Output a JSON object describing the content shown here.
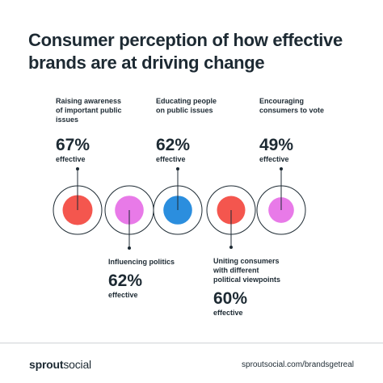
{
  "title_lines": [
    "Consumer perception of how effective",
    "brands are at driving change"
  ],
  "chart_data": {
    "type": "bubble",
    "title": "Consumer perception of how effective brands are at driving change",
    "unit": "% effective",
    "items": [
      {
        "label_lines": [
          "Raising awareness",
          "of important public",
          "issues"
        ],
        "value": 67,
        "value_text": "67%",
        "sub": "effective",
        "color": "#f4564e",
        "label_side": "top"
      },
      {
        "label_lines": [
          "Influencing politics"
        ],
        "value": 62,
        "value_text": "62%",
        "sub": "effective",
        "color": "#e87ae8",
        "label_side": "bottom"
      },
      {
        "label_lines": [
          "Educating people",
          "on public issues"
        ],
        "value": 62,
        "value_text": "62%",
        "sub": "effective",
        "color": "#2b8ede",
        "label_side": "top"
      },
      {
        "label_lines": [
          "Uniting consumers",
          "with different",
          "political viewpoints"
        ],
        "value": 60,
        "value_text": "60%",
        "sub": "effective",
        "color": "#f4564e",
        "label_side": "bottom"
      },
      {
        "label_lines": [
          "Encouraging",
          "consumers to vote"
        ],
        "value": 49,
        "value_text": "49%",
        "sub": "effective",
        "color": "#e87ae8",
        "label_side": "top"
      }
    ]
  },
  "footer": {
    "brand_bold": "sprout",
    "brand_thin": "social",
    "url": "sproutsocial.com/brandsgetreal"
  },
  "colors": {
    "text": "#1d2a33",
    "outline": "#1d2a33",
    "divider": "#cfd3d6"
  }
}
